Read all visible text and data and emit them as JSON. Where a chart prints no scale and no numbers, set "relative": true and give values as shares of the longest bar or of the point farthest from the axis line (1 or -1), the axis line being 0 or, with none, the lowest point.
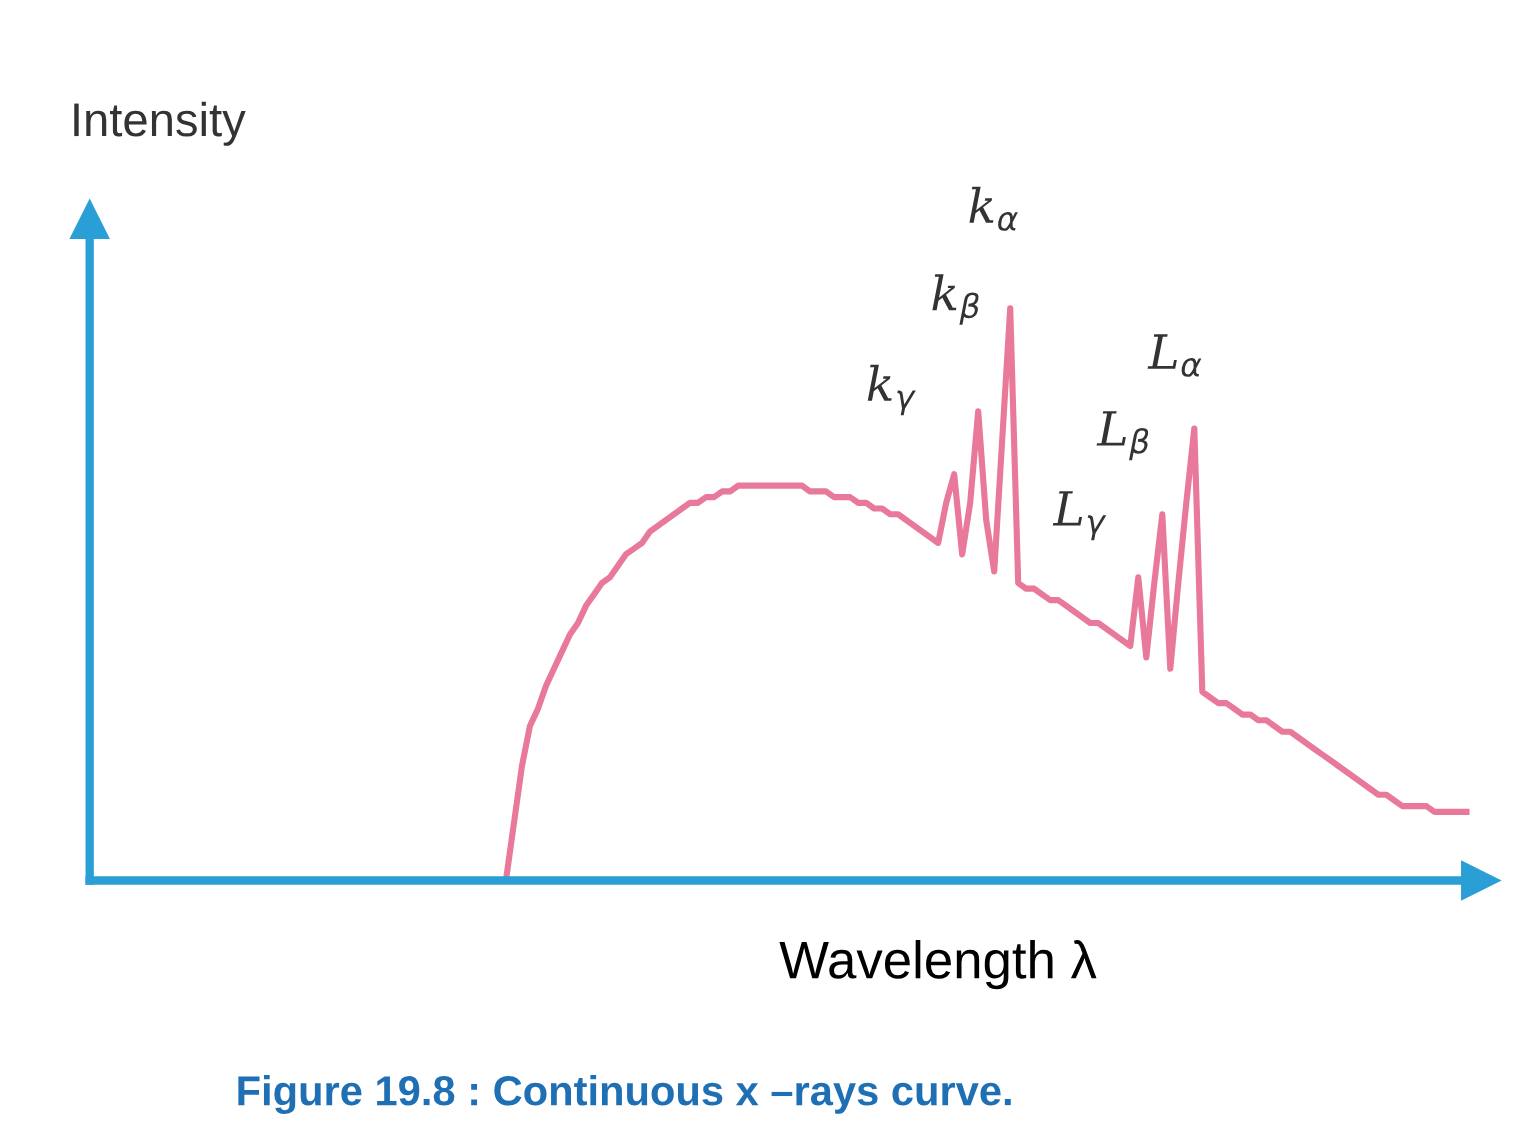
{
  "chart_data": {
    "type": "line",
    "relative": true,
    "xlabel": "Wavelength λ",
    "ylabel": "Intensity",
    "categories": [
      null,
      null,
      null,
      null,
      null,
      null,
      null,
      null,
      null,
      null,
      null,
      null,
      null,
      null,
      null,
      null,
      null,
      null,
      null,
      null,
      null,
      null,
      null,
      null,
      null,
      null,
      null,
      null,
      null,
      null,
      null,
      null,
      null,
      null,
      null,
      null,
      null,
      null,
      null,
      null,
      null,
      null,
      null,
      null,
      null,
      null,
      null,
      null,
      null,
      null,
      null,
      null,
      null,
      null,
      null,
      null,
      null,
      null,
      null,
      null,
      null,
      null,
      null,
      null,
      null,
      null,
      null,
      null,
      null,
      null,
      null,
      null,
      null,
      null,
      null,
      null,
      null,
      null,
      null,
      null,
      null,
      null,
      null,
      null,
      null,
      null,
      null,
      null,
      null,
      null,
      null,
      null,
      null,
      null,
      null,
      null,
      null,
      null,
      null,
      null,
      null,
      null,
      null,
      null,
      null,
      null,
      null,
      null,
      null,
      null,
      null,
      null,
      null,
      null,
      null,
      null,
      null,
      null,
      null,
      null,
      null,
      null,
      null,
      null,
      null,
      null,
      null,
      null,
      null,
      null,
      null,
      null,
      null,
      null,
      null,
      null,
      null,
      null,
      null,
      null,
      null,
      null,
      null,
      null,
      null,
      null,
      null,
      null,
      null,
      null,
      null,
      null,
      null,
      null,
      null,
      null,
      null,
      null,
      null,
      null,
      null,
      null,
      null,
      null,
      null,
      null,
      null,
      null,
      null,
      null,
      null,
      null,
      null,
      null
    ],
    "series": [
      {
        "color": "#e8799a",
        "values": [
          null,
          null,
          null,
          null,
          null,
          null,
          null,
          null,
          null,
          null,
          null,
          null,
          null,
          null,
          null,
          null,
          null,
          null,
          null,
          null,
          null,
          null,
          null,
          null,
          null,
          null,
          null,
          null,
          null,
          null,
          null,
          null,
          null,
          null,
          null,
          null,
          null,
          null,
          null,
          null,
          null,
          null,
          null,
          null,
          null,
          null,
          null,
          null,
          null,
          null,
          null,
          null,
          0,
          0.1,
          0.2,
          0.27,
          0.3,
          0.34,
          0.37,
          0.4,
          0.43,
          0.45,
          0.48,
          0.5,
          0.52,
          0.53,
          0.55,
          0.57,
          0.58,
          0.59,
          0.61,
          0.62,
          0.63,
          0.64,
          0.65,
          0.66,
          0.66,
          0.67,
          0.67,
          0.68,
          0.68,
          0.69,
          0.69,
          0.69,
          0.69,
          0.69,
          0.69,
          0.69,
          0.69,
          0.69,
          0.68,
          0.68,
          0.68,
          0.67,
          0.67,
          0.67,
          0.66,
          0.66,
          0.65,
          0.65,
          0.64,
          0.64,
          0.63,
          0.62,
          0.61,
          0.6,
          0.59,
          0.66,
          0.71,
          0.57,
          0.66,
          0.82,
          0.63,
          0.54,
          0.77,
          1.0,
          0.52,
          0.51,
          0.51,
          0.5,
          0.49,
          0.49,
          0.48,
          0.47,
          0.46,
          0.45,
          0.45,
          0.44,
          0.43,
          0.42,
          0.41,
          0.53,
          0.39,
          0.52,
          0.64,
          0.37,
          0.52,
          0.66,
          0.79,
          0.33,
          0.32,
          0.31,
          0.31,
          0.3,
          0.29,
          0.29,
          0.28,
          0.28,
          0.27,
          0.26,
          0.26,
          0.25,
          0.24,
          0.23,
          0.22,
          0.21,
          0.2,
          0.19,
          0.18,
          0.17,
          0.16,
          0.15,
          0.15,
          0.14,
          0.13,
          0.13,
          0.13,
          0.13,
          0.12,
          0.12,
          0.12,
          0.12,
          0.12,
          null
        ]
      }
    ],
    "annotations": [
      "k$_{γ}$",
      "k$_{β}$",
      "k$_{α}$",
      "L$_{γ}$",
      "L$_{β}$",
      "L$_{α}$",
      "Figure 19.8 : Continuous x –rays curve."
    ],
    "grid": false,
    "legend": false
  }
}
